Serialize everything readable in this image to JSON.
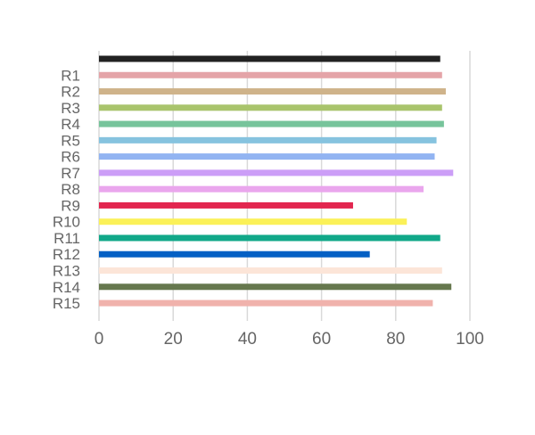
{
  "chart_data": {
    "type": "bar",
    "orientation": "horizontal",
    "categories": [
      "",
      "R1",
      "R2",
      "R3",
      "R4",
      "R5",
      "R6",
      "R7",
      "R8",
      "R9",
      "R10",
      "R11",
      "R12",
      "R13",
      "R14",
      "R15"
    ],
    "values": [
      92,
      92.5,
      93.5,
      92.5,
      93,
      91,
      90.5,
      95.5,
      87.5,
      68.5,
      83,
      92,
      73,
      92.5,
      95,
      90
    ],
    "colors": [
      "#222222",
      "#e4a4a8",
      "#cfb38a",
      "#a9c46c",
      "#77c49b",
      "#86c3df",
      "#92b4f2",
      "#cc9ef7",
      "#eaa6ed",
      "#e2264f",
      "#fbf158",
      "#11a889",
      "#0460c4",
      "#fce5d8",
      "#66784e",
      "#f0b2ac"
    ],
    "xlim": [
      0,
      100
    ],
    "xticks": [
      "0",
      "20",
      "40",
      "60",
      "80",
      "100"
    ],
    "grid": "vertical",
    "legend": "none",
    "title": "",
    "xlabel": "",
    "ylabel": ""
  }
}
